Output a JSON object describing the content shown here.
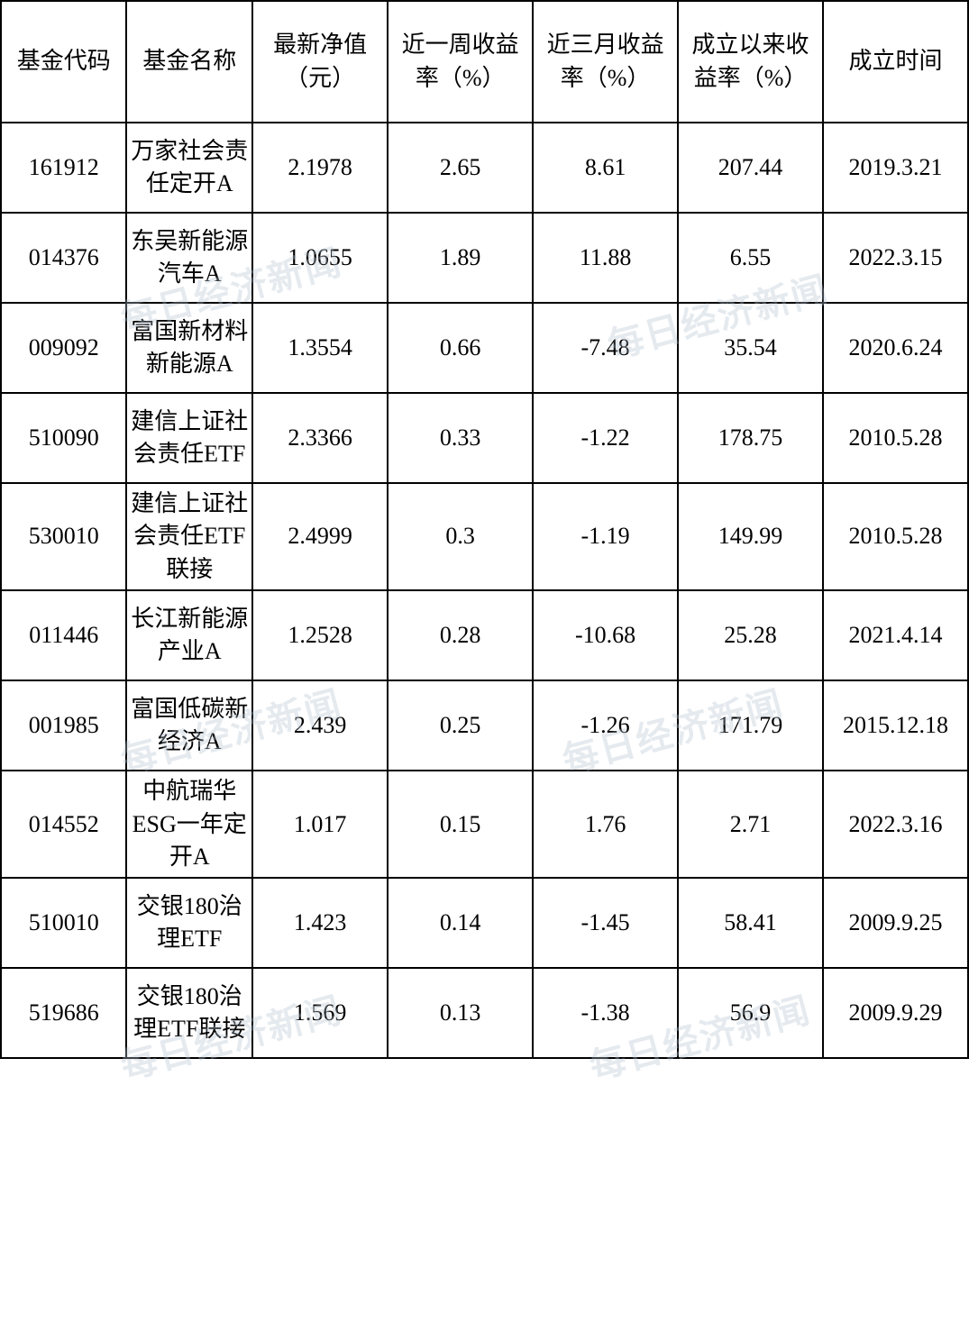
{
  "table": {
    "headers": {
      "code": "基金代码",
      "name": "基金名称",
      "nav": "最新净值（元）",
      "week_return": "近一周收益率（%）",
      "three_month_return": "近三月收益率（%）",
      "since_inception_return": "成立以来收益率（%）",
      "inception_date": "成立时间"
    },
    "rows": [
      {
        "code": "161912",
        "name": "万家社会责任定开A",
        "nav": "2.1978",
        "week_return": "2.65",
        "three_month_return": "8.61",
        "since_inception_return": "207.44",
        "inception_date": "2019.3.21"
      },
      {
        "code": "014376",
        "name": "东吴新能源汽车A",
        "nav": "1.0655",
        "week_return": "1.89",
        "three_month_return": "11.88",
        "since_inception_return": "6.55",
        "inception_date": "2022.3.15"
      },
      {
        "code": "009092",
        "name": "富国新材料新能源A",
        "nav": "1.3554",
        "week_return": "0.66",
        "three_month_return": "-7.48",
        "since_inception_return": "35.54",
        "inception_date": "2020.6.24"
      },
      {
        "code": "510090",
        "name": "建信上证社会责任ETF",
        "nav": "2.3366",
        "week_return": "0.33",
        "three_month_return": "-1.22",
        "since_inception_return": "178.75",
        "inception_date": "2010.5.28"
      },
      {
        "code": "530010",
        "name": "建信上证社会责任ETF联接",
        "nav": "2.4999",
        "week_return": "0.3",
        "three_month_return": "-1.19",
        "since_inception_return": "149.99",
        "inception_date": "2010.5.28"
      },
      {
        "code": "011446",
        "name": "长江新能源产业A",
        "nav": "1.2528",
        "week_return": "0.28",
        "three_month_return": "-10.68",
        "since_inception_return": "25.28",
        "inception_date": "2021.4.14"
      },
      {
        "code": "001985",
        "name": "富国低碳新经济A",
        "nav": "2.439",
        "week_return": "0.25",
        "three_month_return": "-1.26",
        "since_inception_return": "171.79",
        "inception_date": "2015.12.18"
      },
      {
        "code": "014552",
        "name": "中航瑞华ESG一年定开A",
        "nav": "1.017",
        "week_return": "0.15",
        "three_month_return": "1.76",
        "since_inception_return": "2.71",
        "inception_date": "2022.3.16"
      },
      {
        "code": "510010",
        "name": "交银180治理ETF",
        "nav": "1.423",
        "week_return": "0.14",
        "three_month_return": "-1.45",
        "since_inception_return": "58.41",
        "inception_date": "2009.9.25"
      },
      {
        "code": "519686",
        "name": "交银180治理ETF联接",
        "nav": "1.569",
        "week_return": "0.13",
        "three_month_return": "-1.38",
        "since_inception_return": "56.9",
        "inception_date": "2009.9.29"
      }
    ]
  },
  "styling": {
    "border_color": "#000000",
    "border_width": 2,
    "background_color": "#ffffff",
    "text_color": "#000000",
    "font_family": "SimSun",
    "cell_fontsize": 26,
    "header_row_height": 135,
    "body_row_height_min": 100,
    "column_widths_pct": [
      13,
      13,
      14,
      15,
      15,
      15,
      15
    ],
    "text_align": "center",
    "vertical_align": "middle"
  },
  "watermark": {
    "text": "每日经济新闻",
    "color": "rgba(180,195,210,0.35)",
    "fontsize": 40,
    "rotation_deg": -15
  }
}
